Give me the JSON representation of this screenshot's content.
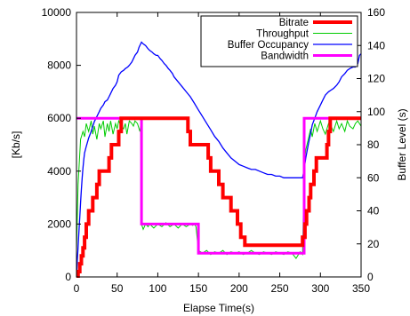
{
  "chart_data": {
    "type": "line",
    "xlabel": "Elapse Time(s)",
    "ylabel_left": "[Kb/s]",
    "ylabel_right": "Buffer Level (s)",
    "xlim": [
      0,
      350
    ],
    "ylim_left": [
      0,
      10000
    ],
    "ylim_right": [
      0,
      160
    ],
    "x_ticks": [
      0,
      50,
      100,
      150,
      200,
      250,
      300,
      350
    ],
    "y_left_ticks": [
      0,
      2000,
      4000,
      6000,
      8000,
      10000
    ],
    "y_right_ticks": [
      0,
      20,
      40,
      60,
      80,
      100,
      120,
      140,
      160
    ],
    "legend_position": "top-right",
    "series": [
      {
        "name": "Bitrate",
        "axis": "left",
        "color": "#ff0000",
        "x": [
          0,
          2,
          2,
          4,
          4,
          6,
          6,
          8,
          8,
          10,
          10,
          12,
          12,
          15,
          15,
          20,
          20,
          25,
          25,
          28,
          28,
          40,
          40,
          43,
          43,
          52,
          52,
          55,
          55,
          80,
          80,
          100,
          100,
          125,
          125,
          137,
          137,
          140,
          140,
          162,
          162,
          165,
          165,
          175,
          175,
          180,
          180,
          190,
          190,
          198,
          198,
          202,
          202,
          207,
          207,
          220,
          220,
          250,
          250,
          278,
          278,
          281,
          281,
          283,
          283,
          286,
          286,
          288,
          288,
          292,
          292,
          295,
          295,
          308,
          308,
          310,
          310,
          312,
          312,
          330,
          330,
          333,
          333,
          350
        ],
        "y": [
          0,
          0,
          200,
          200,
          500,
          500,
          800,
          800,
          1100,
          1100,
          1500,
          1500,
          2000,
          2000,
          2500,
          2500,
          3000,
          3000,
          3500,
          3500,
          4000,
          4000,
          4500,
          4500,
          5000,
          5000,
          5500,
          5500,
          6000,
          6000,
          6000,
          6000,
          6000,
          6000,
          6000,
          6000,
          5500,
          5500,
          5000,
          5000,
          4500,
          4500,
          4000,
          4000,
          3500,
          3500,
          3000,
          3000,
          2500,
          2500,
          2000,
          2000,
          1500,
          1500,
          1200,
          1200,
          1200,
          1200,
          1200,
          1200,
          1500,
          1500,
          2000,
          2000,
          2500,
          2500,
          3000,
          3000,
          3500,
          3500,
          4000,
          4000,
          4500,
          4500,
          5000,
          5000,
          5500,
          5500,
          6000,
          6000,
          6000,
          6000,
          6000,
          6000
        ]
      },
      {
        "name": "Throughput",
        "axis": "left",
        "color": "#00cc00",
        "x": [
          0,
          2,
          5,
          8,
          10,
          12,
          15,
          18,
          20,
          22,
          25,
          28,
          30,
          33,
          35,
          38,
          40,
          42,
          45,
          48,
          50,
          52,
          55,
          58,
          60,
          62,
          65,
          68,
          70,
          72,
          75,
          78,
          79,
          80,
          82,
          85,
          88,
          90,
          95,
          100,
          105,
          110,
          115,
          120,
          125,
          130,
          135,
          140,
          143,
          145,
          147,
          150,
          155,
          160,
          165,
          170,
          175,
          180,
          185,
          190,
          195,
          200,
          205,
          210,
          215,
          220,
          225,
          230,
          235,
          240,
          245,
          250,
          255,
          260,
          265,
          270,
          275,
          278,
          280,
          282,
          285,
          288,
          290,
          293,
          296,
          300,
          303,
          306,
          310,
          313,
          316,
          320,
          323,
          326,
          330,
          333,
          336,
          340,
          343,
          346,
          350
        ],
        "y": [
          1000,
          3500,
          5200,
          5500,
          5300,
          5800,
          5500,
          5900,
          5400,
          5700,
          5200,
          5800,
          5600,
          5900,
          5300,
          5800,
          5500,
          5900,
          5400,
          5800,
          5600,
          5900,
          5700,
          5600,
          5800,
          5400,
          5900,
          5800,
          5700,
          5900,
          5800,
          5500,
          5700,
          2000,
          1800,
          2000,
          1900,
          2000,
          1850,
          2000,
          1900,
          2050,
          1900,
          2000,
          1850,
          2000,
          1900,
          2000,
          1950,
          2000,
          1900,
          1000,
          900,
          1000,
          850,
          950,
          900,
          1000,
          850,
          950,
          900,
          950,
          850,
          900,
          1000,
          900,
          850,
          950,
          900,
          850,
          950,
          900,
          850,
          950,
          900,
          700,
          950,
          850,
          4200,
          4800,
          5200,
          5600,
          5300,
          5800,
          5500,
          5900,
          5600,
          5400,
          5800,
          5700,
          5500,
          5900,
          5600,
          5800,
          5500,
          5900,
          5700,
          5600,
          5800,
          5900,
          5700
        ]
      },
      {
        "name": "Buffer Occupancy",
        "axis": "right",
        "color": "#0000ff",
        "x": [
          0,
          1,
          2,
          3,
          4,
          5,
          6,
          7,
          8,
          9,
          10,
          12,
          15,
          18,
          20,
          22,
          25,
          28,
          30,
          33,
          35,
          38,
          40,
          42,
          45,
          48,
          50,
          52,
          55,
          58,
          60,
          63,
          65,
          68,
          70,
          72,
          75,
          77,
          79,
          80,
          82,
          85,
          88,
          90,
          93,
          95,
          98,
          100,
          103,
          105,
          108,
          110,
          113,
          115,
          118,
          120,
          125,
          130,
          135,
          140,
          145,
          150,
          155,
          160,
          165,
          170,
          175,
          180,
          185,
          190,
          195,
          200,
          205,
          210,
          215,
          220,
          225,
          230,
          235,
          240,
          245,
          250,
          255,
          260,
          265,
          270,
          275,
          277,
          278,
          280,
          282,
          285,
          288,
          290,
          293,
          296,
          300,
          303,
          306,
          310,
          313,
          316,
          320,
          323,
          326,
          330,
          333,
          336,
          340,
          343,
          346,
          348,
          350
        ],
        "y": [
          0,
          10,
          18,
          27,
          36,
          45,
          53,
          60,
          66,
          71,
          75,
          79,
          84,
          88,
          91,
          94,
          97,
          100,
          102,
          104,
          106,
          107,
          109,
          111,
          114,
          116,
          118,
          122,
          124,
          125,
          126,
          127,
          128,
          130,
          132,
          134,
          136,
          139,
          141,
          142,
          141,
          140,
          138,
          137,
          136,
          135,
          134,
          134,
          132,
          131,
          129,
          128,
          126,
          125,
          123,
          121,
          118,
          115,
          112,
          109,
          105,
          101,
          97,
          93,
          89,
          85,
          82,
          78,
          75,
          72,
          70,
          68,
          67,
          66,
          65,
          65,
          64,
          63,
          62,
          62,
          61,
          61,
          60,
          60,
          60,
          60,
          60,
          60,
          60,
          65,
          72,
          80,
          87,
          92,
          96,
          100,
          104,
          107,
          110,
          112,
          113,
          114,
          116,
          118,
          121,
          123,
          125,
          126,
          127,
          127,
          129,
          134,
          135
        ]
      },
      {
        "name": "Bandwidth",
        "axis": "left",
        "color": "#ff00ff",
        "x": [
          0,
          80,
          80,
          150,
          150,
          280,
          280,
          350
        ],
        "y": [
          6000,
          6000,
          2000,
          2000,
          900,
          900,
          6000,
          6000
        ]
      }
    ]
  }
}
